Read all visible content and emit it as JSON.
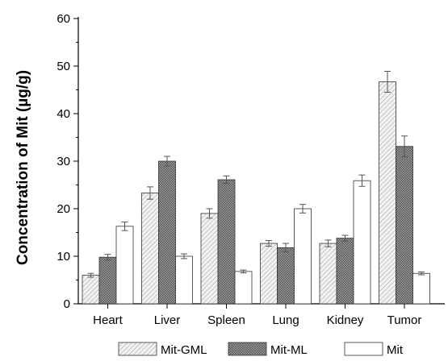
{
  "chart_data": {
    "type": "bar",
    "title": "",
    "xlabel": "",
    "ylabel": "Concentration of Mit (µg/g)",
    "ylim": [
      0,
      60
    ],
    "yticks": [
      0,
      10,
      20,
      30,
      40,
      50,
      60
    ],
    "categories": [
      "Heart",
      "Liver",
      "Spleen",
      "Lung",
      "Kidney",
      "Tumor"
    ],
    "series": [
      {
        "name": "Mit-GML",
        "pattern": "light-hatch",
        "values": [
          6,
          23.3,
          19,
          12.7,
          12.7,
          46.7
        ],
        "errors": [
          0.4,
          1.3,
          1.0,
          0.6,
          0.7,
          2.2
        ]
      },
      {
        "name": "Mit-ML",
        "pattern": "dark-hatch",
        "values": [
          9.8,
          30,
          26.1,
          11.8,
          13.8,
          33.1
        ],
        "errors": [
          0.6,
          1.0,
          0.8,
          0.9,
          0.6,
          2.2
        ]
      },
      {
        "name": "Mit",
        "pattern": "white",
        "values": [
          16.3,
          10,
          6.8,
          20,
          25.9,
          6.4
        ],
        "errors": [
          0.9,
          0.5,
          0.3,
          0.9,
          1.2,
          0.3
        ]
      }
    ],
    "grid": false,
    "legend_position": "bottom"
  }
}
